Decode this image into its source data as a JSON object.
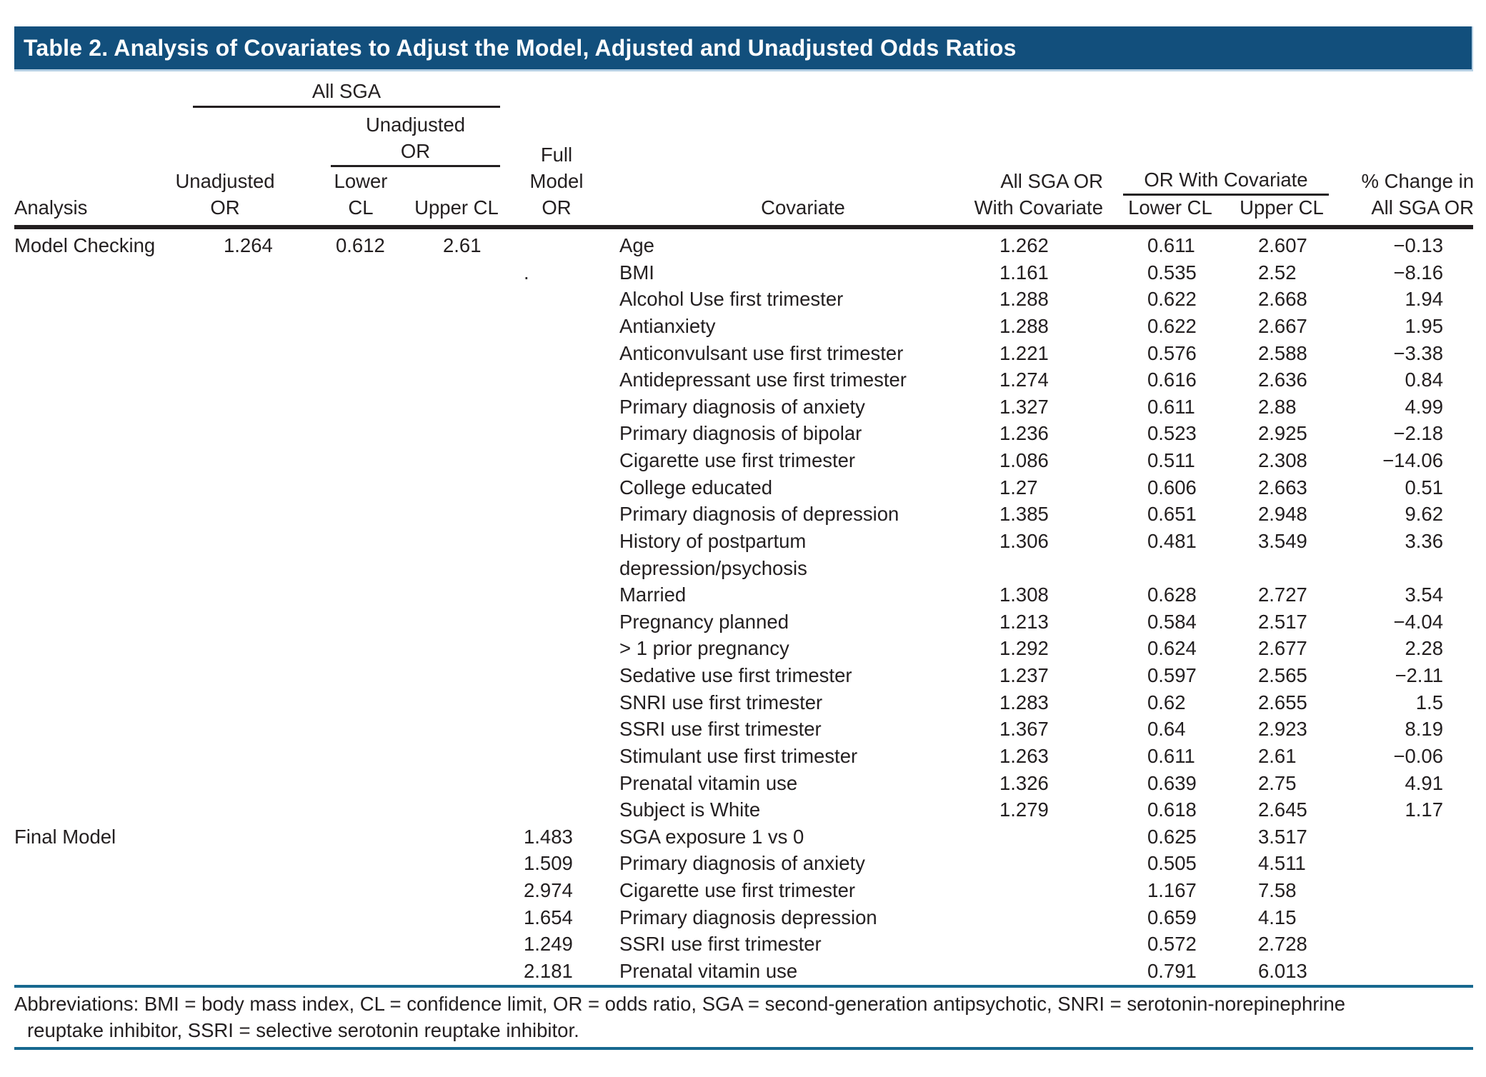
{
  "title_bar": {
    "text": "Table 2. Analysis of Covariates to Adjust the Model, Adjusted and Unadjusted Odds Ratios"
  },
  "colors": {
    "title_bar_bg": "#124F7C",
    "title_bar_edge": "#B5CFE3",
    "title_text": "#FFFFFF",
    "rule_blue": "#17688F",
    "rule_black": "#231F20",
    "body_text": "#231F20"
  },
  "header": {
    "analysis": "Analysis",
    "all_sga_spanner": "All SGA",
    "unadjusted_or_spanner": [
      "Unadjusted",
      "OR"
    ],
    "unadjusted_or": [
      "Unadjusted",
      "OR"
    ],
    "lower_cl": [
      "Lower",
      "CL"
    ],
    "upper_cl": "Upper CL",
    "full_model_or": [
      "Full",
      "Model",
      "OR"
    ],
    "covariate": "Covariate",
    "all_sga_or_with_covariate": [
      "All SGA OR",
      "With Covariate"
    ],
    "or_with_covariate_spanner": "OR With Covariate",
    "cov_lower_cl": "Lower CL",
    "cov_upper_cl": "Upper CL",
    "pct_change": [
      "% Change in",
      "All SGA OR"
    ]
  },
  "column_keys": [
    "analysis",
    "unadjusted-or",
    "lower-cl",
    "upper-cl",
    "full-model-or",
    "covariate",
    "all-sga-or-with-covariate",
    "cov-lower-cl",
    "cov-upper-cl",
    "pct-change"
  ],
  "sections": [
    {
      "name": "Model Checking",
      "rows": [
        [
          "Model Checking",
          "1.264",
          "0.612",
          "2.61",
          "",
          "Age",
          "1.262",
          "0.611",
          "2.607",
          "−0.13"
        ],
        [
          "",
          "",
          "",
          "",
          ".",
          "BMI",
          "1.161",
          "0.535",
          "2.52",
          "−8.16"
        ],
        [
          "",
          "",
          "",
          "",
          "",
          "Alcohol Use first trimester",
          "1.288",
          "0.622",
          "2.668",
          "1.94"
        ],
        [
          "",
          "",
          "",
          "",
          "",
          "Antianxiety",
          "1.288",
          "0.622",
          "2.667",
          "1.95"
        ],
        [
          "",
          "",
          "",
          "",
          "",
          "Anticonvulsant use first trimester",
          "1.221",
          "0.576",
          "2.588",
          "−3.38"
        ],
        [
          "",
          "",
          "",
          "",
          "",
          "Antidepressant use first trimester",
          "1.274",
          "0.616",
          "2.636",
          "0.84"
        ],
        [
          "",
          "",
          "",
          "",
          "",
          "Primary diagnosis of anxiety",
          "1.327",
          "0.611",
          "2.88",
          "4.99"
        ],
        [
          "",
          "",
          "",
          "",
          "",
          "Primary diagnosis of bipolar",
          "1.236",
          "0.523",
          "2.925",
          "−2.18"
        ],
        [
          "",
          "",
          "",
          "",
          "",
          "Cigarette use first trimester",
          "1.086",
          "0.511",
          "2.308",
          "−14.06"
        ],
        [
          "",
          "",
          "",
          "",
          "",
          "College educated",
          "1.27",
          "0.606",
          "2.663",
          "0.51"
        ],
        [
          "",
          "",
          "",
          "",
          "",
          "Primary diagnosis of depression",
          "1.385",
          "0.651",
          "2.948",
          "9.62"
        ],
        [
          "",
          "",
          "",
          "",
          "",
          "History of postpartum",
          "1.306",
          "0.481",
          "3.549",
          "3.36"
        ],
        [
          "",
          "",
          "",
          "",
          "",
          "depression/psychosis",
          "",
          "",
          "",
          ""
        ],
        [
          "",
          "",
          "",
          "",
          "",
          "Married",
          "1.308",
          "0.628",
          "2.727",
          "3.54"
        ],
        [
          "",
          "",
          "",
          "",
          "",
          "Pregnancy planned",
          "1.213",
          "0.584",
          "2.517",
          "−4.04"
        ],
        [
          "",
          "",
          "",
          "",
          "",
          "> 1 prior pregnancy",
          "1.292",
          "0.624",
          "2.677",
          "2.28"
        ],
        [
          "",
          "",
          "",
          "",
          "",
          "Sedative use first trimester",
          "1.237",
          "0.597",
          "2.565",
          "−2.11"
        ],
        [
          "",
          "",
          "",
          "",
          "",
          "SNRI use first trimester",
          "1.283",
          "0.62",
          "2.655",
          "1.5"
        ],
        [
          "",
          "",
          "",
          "",
          "",
          "SSRI use first trimester",
          "1.367",
          "0.64",
          "2.923",
          "8.19"
        ],
        [
          "",
          "",
          "",
          "",
          "",
          "Stimulant use first trimester",
          "1.263",
          "0.611",
          "2.61",
          "−0.06"
        ],
        [
          "",
          "",
          "",
          "",
          "",
          "Prenatal vitamin use",
          "1.326",
          "0.639",
          "2.75",
          "4.91"
        ],
        [
          "",
          "",
          "",
          "",
          "",
          "Subject is White",
          "1.279",
          "0.618",
          "2.645",
          "1.17"
        ]
      ]
    },
    {
      "name": "Final Model",
      "rows": [
        [
          "Final Model",
          "",
          "",
          "",
          "1.483",
          "SGA exposure 1 vs 0",
          "",
          "0.625",
          "3.517",
          ""
        ],
        [
          "",
          "",
          "",
          "",
          "1.509",
          "Primary diagnosis of anxiety",
          "",
          "0.505",
          "4.511",
          ""
        ],
        [
          "",
          "",
          "",
          "",
          "2.974",
          "Cigarette use first trimester",
          "",
          "1.167",
          "7.58",
          ""
        ],
        [
          "",
          "",
          "",
          "",
          "1.654",
          "Primary diagnosis depression",
          "",
          "0.659",
          "4.15",
          ""
        ],
        [
          "",
          "",
          "",
          "",
          "1.249",
          "SSRI use first trimester",
          "",
          "0.572",
          "2.728",
          ""
        ],
        [
          "",
          "",
          "",
          "",
          "2.181",
          "Prenatal vitamin use",
          "",
          "0.791",
          "6.013",
          ""
        ]
      ]
    }
  ],
  "footer": {
    "line1": "Abbreviations: BMI = body mass index, CL = confidence limit, OR = odds ratio, SGA = second-generation antipsychotic, SNRI = serotonin-norepinephrine",
    "line2": "reuptake inhibitor, SSRI = selective serotonin reuptake inhibitor."
  }
}
